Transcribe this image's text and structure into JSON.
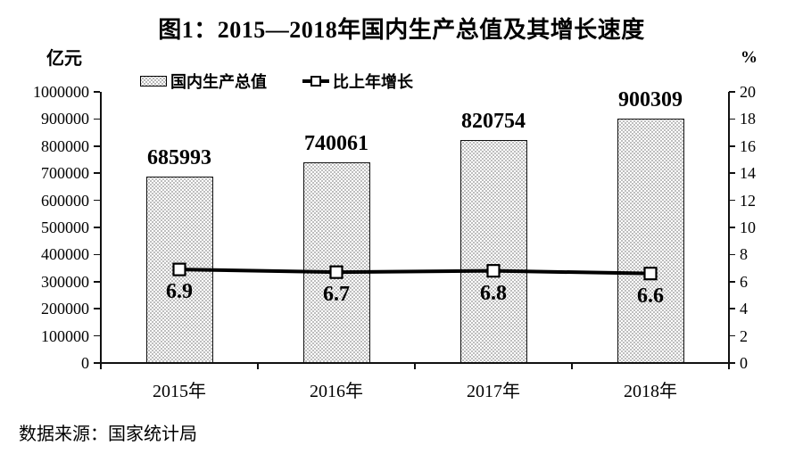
{
  "title": "图1：2015—2018年国内生产总值及其增长速度",
  "source": "数据来源：国家统计局",
  "colors": {
    "background": "#ffffff",
    "text": "#000000",
    "axis": "#111111",
    "bar_fill": "#ffffff",
    "bar_pattern_dot": "#a8a8a8",
    "bar_border": "#111111",
    "line": "#000000",
    "marker_fill": "#ffffff",
    "marker_border": "#000000"
  },
  "chart_data": {
    "type": "bar+line",
    "title": "图1：2015—2018年国内生产总值及其增长速度",
    "categories": [
      "2015年",
      "2016年",
      "2017年",
      "2018年"
    ],
    "series": [
      {
        "name": "国内生产总值",
        "type": "bar",
        "axis": "left",
        "values": [
          685993,
          740061,
          820754,
          900309
        ],
        "labels": [
          "685993",
          "740061",
          "820754",
          "900309"
        ]
      },
      {
        "name": "比上年增长",
        "type": "line",
        "axis": "right",
        "values": [
          6.9,
          6.7,
          6.8,
          6.6
        ],
        "labels": [
          "6.9",
          "6.7",
          "6.8",
          "6.6"
        ]
      }
    ],
    "left_axis": {
      "unit": "亿元",
      "min": 0,
      "max": 1000000,
      "step": 100000,
      "ticks": [
        1000000,
        900000,
        800000,
        700000,
        600000,
        500000,
        400000,
        300000,
        200000,
        100000,
        0
      ]
    },
    "right_axis": {
      "unit": "%",
      "min": 0,
      "max": 20,
      "step": 2,
      "ticks": [
        20,
        18,
        16,
        14,
        12,
        10,
        8,
        6,
        4,
        2,
        0
      ]
    },
    "legend_position": "top",
    "grid": false
  }
}
